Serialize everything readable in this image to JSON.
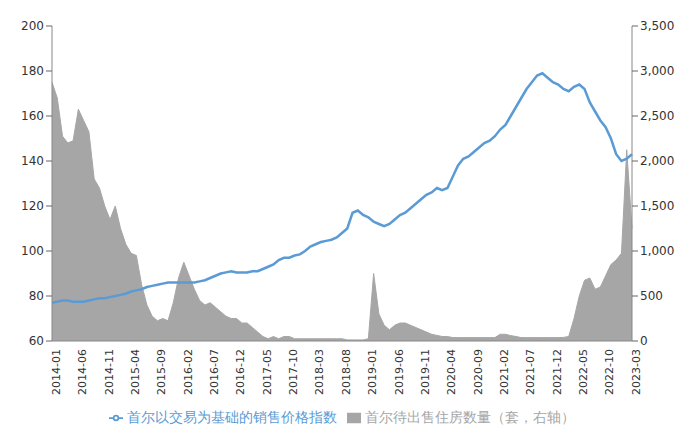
{
  "chart_data": {
    "type": "combo",
    "categories": [
      "2014-01",
      null,
      null,
      null,
      null,
      "2014-06",
      null,
      null,
      null,
      null,
      "2014-11",
      null,
      null,
      null,
      null,
      "2015-04",
      null,
      null,
      null,
      null,
      "2015-09",
      null,
      null,
      null,
      null,
      "2016-02",
      null,
      null,
      null,
      null,
      "2016-07",
      null,
      null,
      null,
      null,
      "2016-12",
      null,
      null,
      null,
      null,
      "2017-05",
      null,
      null,
      null,
      null,
      "2017-10",
      null,
      null,
      null,
      null,
      "2018-03",
      null,
      null,
      null,
      null,
      "2018-08",
      null,
      null,
      null,
      null,
      "2019-01",
      null,
      null,
      null,
      null,
      "2019-06",
      null,
      null,
      null,
      null,
      "2019-11",
      null,
      null,
      null,
      null,
      "2020-04",
      null,
      null,
      null,
      null,
      "2020-09",
      null,
      null,
      null,
      null,
      "2021-02",
      null,
      null,
      null,
      null,
      "2021-07",
      null,
      null,
      null,
      null,
      "2021-12",
      null,
      null,
      null,
      null,
      "2022-05",
      null,
      null,
      null,
      null,
      "2022-10",
      null,
      null,
      null,
      null,
      "2023-03"
    ],
    "series": [
      {
        "name": "首尔待出售住房数量（套，右轴）",
        "type": "area",
        "axis": "y2",
        "color": "#a6a6a6",
        "values": [
          2875,
          2700,
          2275,
          2200,
          2225,
          2575,
          2450,
          2325,
          1800,
          1700,
          1500,
          1350,
          1500,
          1250,
          1075,
          975,
          950,
          625,
          400,
          275,
          225,
          250,
          225,
          425,
          700,
          875,
          725,
          575,
          450,
          400,
          425,
          375,
          325,
          275,
          250,
          250,
          200,
          200,
          150,
          100,
          50,
          25,
          50,
          25,
          50,
          50,
          25,
          25,
          25,
          25,
          25,
          25,
          25,
          25,
          25,
          25,
          12,
          12,
          12,
          12,
          25,
          750,
          300,
          175,
          125,
          175,
          200,
          200,
          175,
          150,
          125,
          100,
          75,
          62,
          50,
          50,
          38,
          38,
          38,
          38,
          38,
          38,
          38,
          38,
          38,
          75,
          75,
          60,
          50,
          38,
          38,
          38,
          38,
          38,
          38,
          38,
          38,
          40,
          50,
          250,
          500,
          675,
          700,
          575,
          600,
          725,
          850,
          900,
          975,
          2125,
          1250
        ]
      },
      {
        "name": "首尔以交易为基础的销售价格指数",
        "type": "line",
        "color": "#5b9bd5",
        "values": [
          77,
          77.5,
          78,
          78,
          77.5,
          77.5,
          77.5,
          78,
          78.5,
          79,
          79,
          79.5,
          80,
          80.5,
          81,
          82,
          82.5,
          83,
          84,
          84.5,
          85,
          85.5,
          86,
          86,
          86,
          86,
          86,
          86,
          86.5,
          87,
          88,
          89,
          90,
          90.5,
          91,
          90.5,
          90.5,
          90.5,
          91,
          91,
          92,
          93,
          94,
          96,
          97,
          97,
          98,
          98.5,
          100,
          102,
          103,
          104,
          104.5,
          105,
          106,
          108,
          110,
          117,
          118,
          116,
          115,
          113,
          112,
          111,
          112,
          114,
          116,
          117,
          119,
          121,
          123,
          125,
          126,
          128,
          127,
          128,
          133,
          138,
          141,
          142,
          144,
          146,
          148,
          149,
          151,
          154,
          156,
          160,
          164,
          168,
          172,
          175,
          178,
          179,
          177,
          175,
          174,
          172,
          171,
          173,
          174,
          172,
          166,
          162,
          158,
          155,
          150,
          143,
          140,
          141,
          143
        ]
      }
    ],
    "ylim": [
      60,
      200
    ],
    "yticks": [
      60,
      80,
      100,
      120,
      140,
      160,
      180,
      200
    ],
    "y2lim": [
      0,
      3500
    ],
    "y2ticks": [
      0,
      500,
      {
        "value": 1000,
        "label": "1,000"
      },
      {
        "value": 1500,
        "label": "1,500"
      },
      {
        "value": 2000,
        "label": "2,000"
      },
      {
        "value": 2500,
        "label": "2,500"
      },
      {
        "value": 3000,
        "label": "3,000"
      },
      {
        "value": 3500,
        "label": "3,500"
      }
    ],
    "grid": false,
    "legend": "bottom"
  }
}
